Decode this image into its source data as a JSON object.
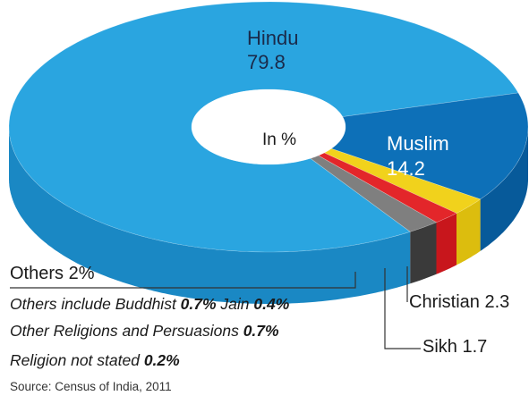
{
  "chart_data": {
    "type": "pie",
    "style": "3d-donut",
    "center_label": "In %",
    "slices": [
      {
        "name": "Hindu",
        "value": 79.8,
        "value_label": "79.8",
        "color": "#2aa5e0",
        "side_color": "#1a88c4"
      },
      {
        "name": "Muslim",
        "value": 14.2,
        "value_label": "14.2",
        "color": "#0d70b8",
        "side_color": "#075a9a"
      },
      {
        "name": "Christian",
        "value": 2.3,
        "value_label": "Christian 2.3",
        "color": "#f1d21c",
        "side_color": "#dcbd0e"
      },
      {
        "name": "Sikh",
        "value": 1.7,
        "value_label": "Sikh 1.7",
        "color": "#e3262a",
        "side_color": "#c8161c"
      },
      {
        "name": "Others",
        "value": 2.0,
        "value_label": "Others 2%",
        "color": "#7f7f7f",
        "side_color": "#3a3a3a"
      }
    ]
  },
  "notes": {
    "line1_prefix": "Others include Buddhist ",
    "line1_buddhist": "0.7%",
    "line1_mid": " Jain ",
    "line1_jain": "0.4%",
    "line2_prefix": "Other Religions and Persuasions ",
    "line2_value": "0.7%",
    "line3_prefix": "Religion not stated ",
    "line3_value": "0.2%"
  },
  "source": "Source: Census of India, 2011"
}
